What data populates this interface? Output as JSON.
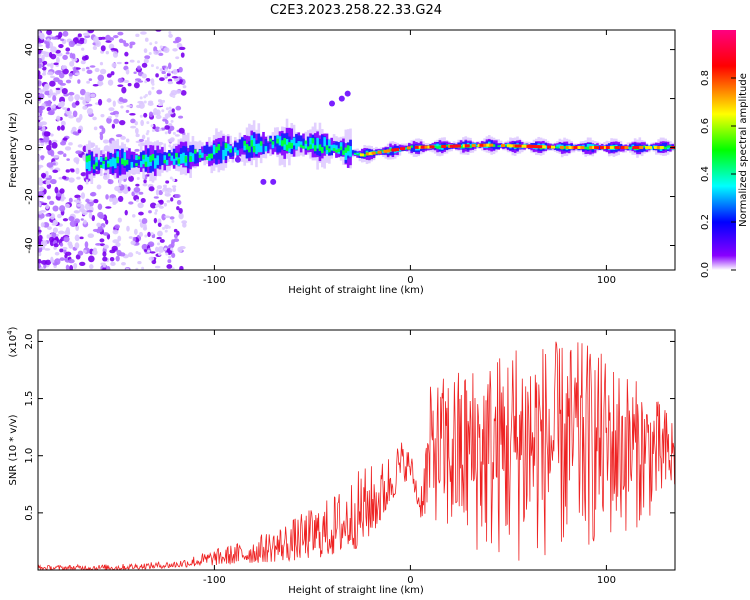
{
  "title": "C2E3.2023.258.22.33.G24",
  "chart_data": [
    {
      "type": "heatmap",
      "name": "spectrogram",
      "xlabel": "Height of straight line (km)",
      "ylabel": "Frequency (Hz)",
      "xlim": [
        -190,
        135
      ],
      "ylim": [
        -50,
        48
      ],
      "xticks": [
        -100,
        0,
        100
      ],
      "yticks": [
        -40,
        -20,
        0,
        20,
        40
      ],
      "colorbar": {
        "label": "Normalized spectral amplitude",
        "range": [
          0.0,
          1.0
        ],
        "ticks": [
          0.0,
          0.2,
          0.4,
          0.6,
          0.8
        ],
        "colormap": [
          "#ffffff",
          "#8800ff",
          "#0000ff",
          "#00ffff",
          "#00ff00",
          "#ffff00",
          "#ff0000",
          "#ff0080"
        ]
      },
      "trace": {
        "description_points": [
          {
            "x": -160,
            "y": -6
          },
          {
            "x": -130,
            "y": -5
          },
          {
            "x": -100,
            "y": -2
          },
          {
            "x": -80,
            "y": 1
          },
          {
            "x": -60,
            "y": 2
          },
          {
            "x": -40,
            "y": 0
          },
          {
            "x": -25,
            "y": -3
          },
          {
            "x": 0,
            "y": 0
          },
          {
            "x": 40,
            "y": 1
          },
          {
            "x": 80,
            "y": 0
          },
          {
            "x": 130,
            "y": 0
          }
        ]
      }
    },
    {
      "type": "line",
      "name": "snr",
      "xlabel": "Height of straight line (km)",
      "ylabel": "SNR (10 * v/v)",
      "ylabel_scale": "(x10",
      "ylabel_scale_exp": "4",
      "ylabel_scale_close": ")",
      "xlim": [
        -190,
        135
      ],
      "ylim": [
        0,
        2.1
      ],
      "xticks": [
        -100,
        0,
        100
      ],
      "yticks": [
        0.5,
        1.0,
        1.5,
        2.0
      ],
      "ytick_labels": [
        "0.5",
        "1.0",
        "1.5",
        "2.0"
      ],
      "color": "#ee2222",
      "envelope": {
        "x": [
          -190,
          -150,
          -120,
          -100,
          -80,
          -60,
          -40,
          -25,
          -15,
          -5,
          0,
          5,
          10,
          20,
          40,
          55,
          70,
          90,
          110,
          135
        ],
        "low": [
          0.0,
          0.0,
          0.02,
          0.04,
          0.06,
          0.08,
          0.12,
          0.2,
          0.4,
          0.75,
          0.8,
          0.45,
          0.5,
          0.2,
          0.1,
          0.05,
          0.1,
          0.15,
          0.3,
          0.6
        ],
        "high": [
          0.04,
          0.05,
          0.08,
          0.18,
          0.28,
          0.45,
          0.65,
          0.9,
          0.95,
          1.15,
          1.05,
          0.7,
          1.6,
          1.75,
          1.85,
          2.05,
          2.0,
          2.0,
          1.75,
          1.35
        ]
      }
    }
  ]
}
